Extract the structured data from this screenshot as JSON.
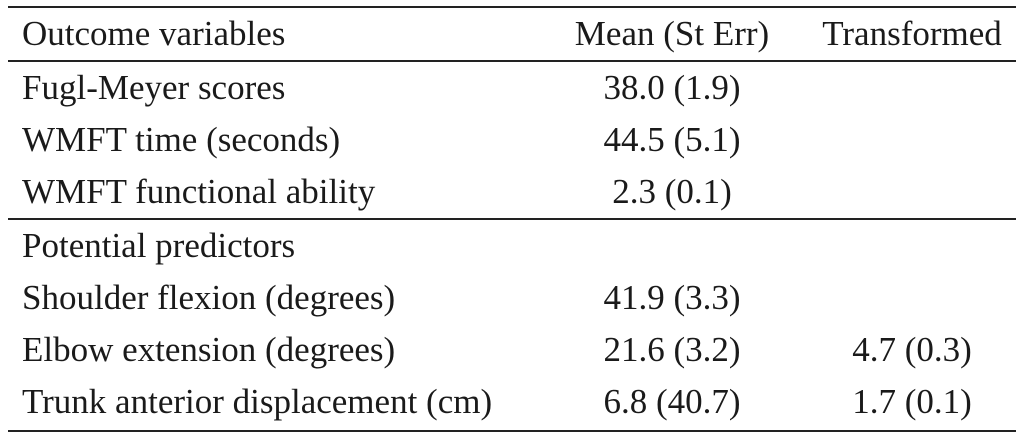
{
  "header": {
    "col1": "Outcome variables",
    "col2": "Mean (St Err)",
    "col3": "Transformed"
  },
  "outcome_rows": [
    {
      "label": "Fugl-Meyer scores",
      "mean": "38.0 (1.9)",
      "transformed": ""
    },
    {
      "label": "WMFT time (seconds)",
      "mean": "44.5 (5.1)",
      "transformed": ""
    },
    {
      "label": "WMFT functional ability",
      "mean": "2.3 (0.1)",
      "transformed": ""
    }
  ],
  "predictors_heading": "Potential predictors",
  "predictor_rows": [
    {
      "label": "Shoulder flexion (degrees)",
      "mean": "41.9 (3.3)",
      "transformed": ""
    },
    {
      "label": "Elbow extension (degrees)",
      "mean": "21.6 (3.2)",
      "transformed": "4.7 (0.3)"
    },
    {
      "label": "Trunk anterior displacement (cm)",
      "mean": "6.8 (40.7)",
      "transformed": "1.7 (0.1)"
    }
  ]
}
